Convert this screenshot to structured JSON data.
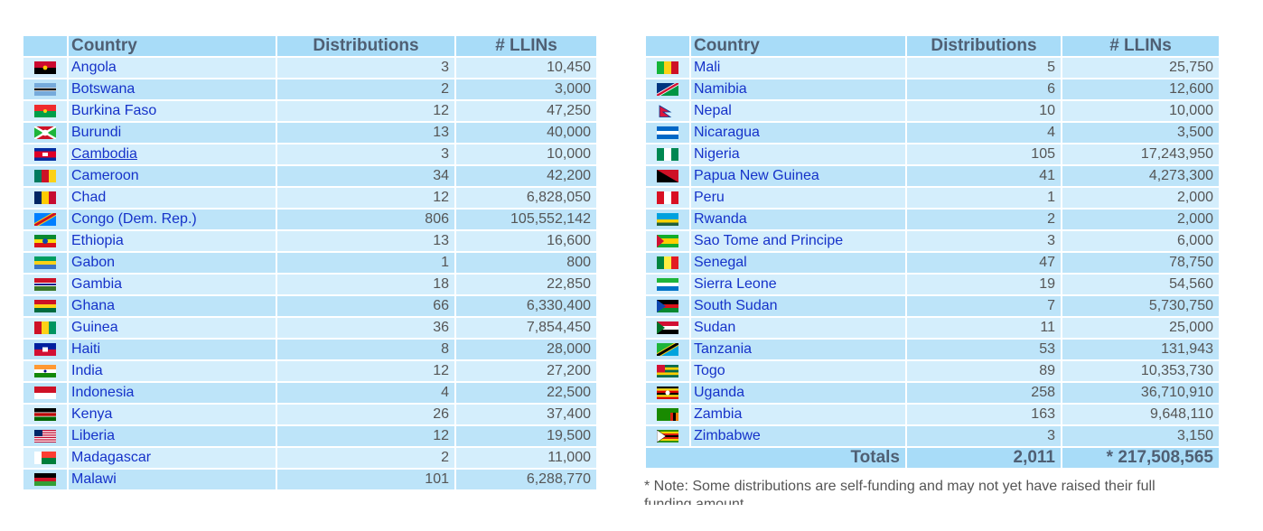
{
  "headers": {
    "country": "Country",
    "distributions": "Distributions",
    "llins": "# LLINs"
  },
  "left": [
    {
      "country": "Angola",
      "dist": "3",
      "llins": "10,450",
      "flag": "angola"
    },
    {
      "country": "Botswana",
      "dist": "2",
      "llins": "3,000",
      "flag": "botswana"
    },
    {
      "country": "Burkina Faso",
      "dist": "12",
      "llins": "47,250",
      "flag": "burkina-faso"
    },
    {
      "country": "Burundi",
      "dist": "13",
      "llins": "40,000",
      "flag": "burundi"
    },
    {
      "country": "Cambodia",
      "dist": "3",
      "llins": "10,000",
      "flag": "cambodia",
      "link": true
    },
    {
      "country": "Cameroon",
      "dist": "34",
      "llins": "42,200",
      "flag": "cameroon"
    },
    {
      "country": "Chad",
      "dist": "12",
      "llins": "6,828,050",
      "flag": "chad"
    },
    {
      "country": "Congo (Dem. Rep.)",
      "dist": "806",
      "llins": "105,552,142",
      "flag": "congo-dem-rep"
    },
    {
      "country": "Ethiopia",
      "dist": "13",
      "llins": "16,600",
      "flag": "ethiopia"
    },
    {
      "country": "Gabon",
      "dist": "1",
      "llins": "800",
      "flag": "gabon"
    },
    {
      "country": "Gambia",
      "dist": "18",
      "llins": "22,850",
      "flag": "gambia"
    },
    {
      "country": "Ghana",
      "dist": "66",
      "llins": "6,330,400",
      "flag": "ghana"
    },
    {
      "country": "Guinea",
      "dist": "36",
      "llins": "7,854,450",
      "flag": "guinea"
    },
    {
      "country": "Haiti",
      "dist": "8",
      "llins": "28,000",
      "flag": "haiti"
    },
    {
      "country": "India",
      "dist": "12",
      "llins": "27,200",
      "flag": "india"
    },
    {
      "country": "Indonesia",
      "dist": "4",
      "llins": "22,500",
      "flag": "indonesia"
    },
    {
      "country": "Kenya",
      "dist": "26",
      "llins": "37,400",
      "flag": "kenya"
    },
    {
      "country": "Liberia",
      "dist": "12",
      "llins": "19,500",
      "flag": "liberia"
    },
    {
      "country": "Madagascar",
      "dist": "2",
      "llins": "11,000",
      "flag": "madagascar"
    },
    {
      "country": "Malawi",
      "dist": "101",
      "llins": "6,288,770",
      "flag": "malawi"
    }
  ],
  "right": [
    {
      "country": "Mali",
      "dist": "5",
      "llins": "25,750",
      "flag": "mali"
    },
    {
      "country": "Namibia",
      "dist": "6",
      "llins": "12,600",
      "flag": "namibia"
    },
    {
      "country": "Nepal",
      "dist": "10",
      "llins": "10,000",
      "flag": "nepal"
    },
    {
      "country": "Nicaragua",
      "dist": "4",
      "llins": "3,500",
      "flag": "nicaragua"
    },
    {
      "country": "Nigeria",
      "dist": "105",
      "llins": "17,243,950",
      "flag": "nigeria"
    },
    {
      "country": "Papua New Guinea",
      "dist": "41",
      "llins": "4,273,300",
      "flag": "papua-new-guinea"
    },
    {
      "country": "Peru",
      "dist": "1",
      "llins": "2,000",
      "flag": "peru"
    },
    {
      "country": "Rwanda",
      "dist": "2",
      "llins": "2,000",
      "flag": "rwanda"
    },
    {
      "country": "Sao Tome and Principe",
      "dist": "3",
      "llins": "6,000",
      "flag": "sao-tome-and-principe"
    },
    {
      "country": "Senegal",
      "dist": "47",
      "llins": "78,750",
      "flag": "senegal"
    },
    {
      "country": "Sierra Leone",
      "dist": "19",
      "llins": "54,560",
      "flag": "sierra-leone"
    },
    {
      "country": "South Sudan",
      "dist": "7",
      "llins": "5,730,750",
      "flag": "south-sudan"
    },
    {
      "country": "Sudan",
      "dist": "11",
      "llins": "25,000",
      "flag": "sudan"
    },
    {
      "country": "Tanzania",
      "dist": "53",
      "llins": "131,943",
      "flag": "tanzania"
    },
    {
      "country": "Togo",
      "dist": "89",
      "llins": "10,353,730",
      "flag": "togo"
    },
    {
      "country": "Uganda",
      "dist": "258",
      "llins": "36,710,910",
      "flag": "uganda"
    },
    {
      "country": "Zambia",
      "dist": "163",
      "llins": "9,648,110",
      "flag": "zambia"
    },
    {
      "country": "Zimbabwe",
      "dist": "3",
      "llins": "3,150",
      "flag": "zimbabwe"
    }
  ],
  "totals": {
    "label": "Totals",
    "dist": "2,011",
    "llins": "* 217,508,565"
  },
  "note": "* Note: Some distributions are self-funding and may not yet have raised their full funding amount."
}
